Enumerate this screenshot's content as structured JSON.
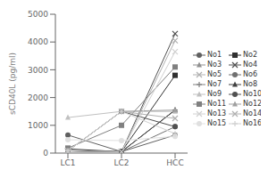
{
  "chart_data": {
    "type": "line",
    "ylabel": "sCD40L (pg/ml)",
    "categories": [
      "LC1",
      "LC2",
      "HCC"
    ],
    "series": [
      {
        "name": "No1",
        "values": [
          650,
          50,
          650
        ],
        "color": "#606060",
        "marker": "circle"
      },
      {
        "name": "No2",
        "values": [
          150,
          50,
          2800
        ],
        "color": "#303030",
        "marker": "square"
      },
      {
        "name": "No3",
        "values": [
          100,
          50,
          1550
        ],
        "color": "#909090",
        "marker": "triangle"
      },
      {
        "name": "No4",
        "values": [
          80,
          50,
          4300
        ],
        "color": "#505050",
        "marker": "x"
      },
      {
        "name": "No5",
        "values": [
          80,
          50,
          4050
        ],
        "color": "#b0b0b0",
        "marker": "x"
      },
      {
        "name": "No6",
        "values": [
          80,
          50,
          950
        ],
        "color": "#707070",
        "marker": "circle"
      },
      {
        "name": "No7",
        "values": [
          80,
          50,
          1550
        ],
        "color": "#808080",
        "marker": "plus"
      },
      {
        "name": "No8",
        "values": [
          80,
          50,
          1550
        ],
        "color": "#404040",
        "marker": "triangle"
      },
      {
        "name": "No9",
        "values": [
          1280,
          1500,
          1500
        ],
        "color": "#c0c0c0",
        "marker": "triangle"
      },
      {
        "name": "No10",
        "values": [
          80,
          1500,
          950
        ],
        "color": "#505050",
        "marker": "circle"
      },
      {
        "name": "No11",
        "values": [
          180,
          1000,
          3100
        ],
        "color": "#808080",
        "marker": "square"
      },
      {
        "name": "No12",
        "values": [
          80,
          1500,
          1550
        ],
        "color": "#a0a0a0",
        "marker": "triangle"
      },
      {
        "name": "No13",
        "values": [
          80,
          50,
          3650
        ],
        "color": "#d0d0d0",
        "marker": "x"
      },
      {
        "name": "No14",
        "values": [
          80,
          1500,
          1250
        ],
        "color": "#b0b0b0",
        "marker": "x"
      },
      {
        "name": "No15",
        "values": [
          480,
          450,
          600
        ],
        "color": "#e0e0e0",
        "marker": "circle"
      },
      {
        "name": "No16",
        "values": [
          80,
          1500,
          700
        ],
        "color": "#d0d0d0",
        "marker": "plus"
      }
    ],
    "ylim": [
      0,
      5000
    ],
    "yticks": [
      0,
      1000,
      2000,
      3000,
      4000,
      5000
    ],
    "grid": false,
    "legend": "right"
  }
}
